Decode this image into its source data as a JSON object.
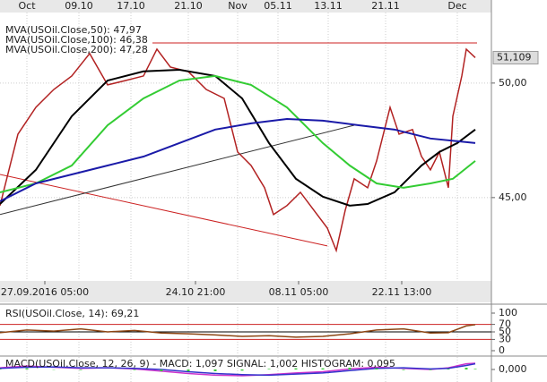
{
  "chart_data": [
    {
      "type": "line",
      "name": "price",
      "xlim": [
        0,
        109.6
      ],
      "ylim": [
        41.44,
        53.08
      ],
      "xticks": [
        {
          "value": 6,
          "label": "Oct"
        },
        {
          "value": 17.6,
          "label": "09.10"
        },
        {
          "value": 29.2,
          "label": "17.10"
        },
        {
          "value": 42,
          "label": "21.10"
        },
        {
          "value": 53,
          "label": "Nov"
        },
        {
          "value": 62,
          "label": "05.11"
        },
        {
          "value": 73.2,
          "label": "13.11"
        },
        {
          "value": 86,
          "label": "21.11"
        },
        {
          "value": 102,
          "label": "Dec"
        }
      ],
      "xticks_time": [
        {
          "value": 10,
          "label": "27.09.2016 05:00"
        },
        {
          "value": 43.6,
          "label": "24.10 21:00"
        },
        {
          "value": 66.6,
          "label": "08.11 05:00"
        },
        {
          "value": 89.6,
          "label": "22.11 13:00"
        }
      ],
      "yticks": [
        {
          "value": 50,
          "label": "50,00"
        },
        {
          "value": 45,
          "label": "45,00"
        }
      ],
      "last_price": {
        "value": 51.109,
        "label": "51,109"
      },
      "grid": true,
      "series": [
        {
          "color": "#b22222",
          "x": [
            0,
            4,
            8,
            12,
            16,
            20,
            24,
            28,
            32,
            35,
            38,
            42,
            46,
            50,
            53,
            56,
            59,
            61,
            64,
            67,
            70,
            73,
            75,
            77,
            79,
            82,
            84,
            87,
            89,
            92,
            94,
            96,
            98,
            100,
            101,
            103,
            104,
            106
          ],
          "values": [
            44.65,
            47.77,
            48.94,
            49.72,
            50.31,
            51.29,
            49.92,
            50.11,
            50.31,
            51.48,
            50.7,
            50.5,
            49.72,
            49.33,
            46.99,
            46.4,
            45.43,
            44.26,
            44.65,
            45.23,
            44.45,
            43.67,
            42.69,
            44.45,
            45.82,
            45.43,
            46.6,
            48.94,
            47.77,
            47.97,
            46.8,
            46.21,
            46.99,
            45.43,
            48.55,
            50.31,
            51.48,
            51.11
          ]
        },
        {
          "name": "MVA(USOil.Close,50): 47,97",
          "color": "#000000",
          "x": [
            0,
            8,
            16,
            24,
            32,
            40,
            48,
            54,
            60,
            66,
            72,
            78,
            82,
            88,
            94,
            98,
            102,
            106
          ],
          "values": [
            44.72,
            46.21,
            48.55,
            50.11,
            50.51,
            50.58,
            50.31,
            49.33,
            47.38,
            45.82,
            45.04,
            44.65,
            44.72,
            45.23,
            46.4,
            46.99,
            47.38,
            47.97
          ]
        },
        {
          "name": "MVA(USOil.Close,100): 46,38",
          "color": "#33cc33",
          "x": [
            0,
            8,
            16,
            24,
            32,
            40,
            48,
            56,
            64,
            72,
            78,
            84,
            90,
            96,
            101,
            106
          ],
          "values": [
            45.23,
            45.62,
            46.4,
            48.16,
            49.33,
            50.11,
            50.31,
            49.92,
            48.94,
            47.38,
            46.4,
            45.62,
            45.43,
            45.62,
            45.82,
            46.6
          ]
        },
        {
          "name": "MVA(USOil.Close,200): 47,28",
          "color": "#1a1aa8",
          "x": [
            0,
            8,
            16,
            24,
            32,
            40,
            48,
            56,
            64,
            72,
            80,
            88,
            96,
            106
          ],
          "values": [
            44.84,
            45.62,
            46.01,
            46.4,
            46.79,
            47.38,
            47.97,
            48.24,
            48.43,
            48.36,
            48.16,
            47.97,
            47.58,
            47.38
          ]
        }
      ],
      "trendlines": [
        {
          "color": "#cc2222",
          "x": [
            34,
            106.4
          ],
          "values": [
            51.75,
            51.75
          ]
        },
        {
          "color": "#cc2222",
          "x": [
            0,
            73
          ],
          "values": [
            46.01,
            42.89
          ]
        },
        {
          "color": "#333333",
          "x": [
            0,
            79
          ],
          "values": [
            44.26,
            48.16
          ]
        }
      ]
    },
    {
      "type": "line",
      "name": "rsi",
      "title": "RSI(USOil.Close, 14): 69,21",
      "xlim": [
        0,
        109.6
      ],
      "ylim": [
        -11.9,
        116.7
      ],
      "yticks": [
        100,
        70,
        50,
        30,
        0
      ],
      "levels": [
        {
          "value": 70,
          "color": "#cc2222"
        },
        {
          "value": 50,
          "color": "#000000"
        },
        {
          "value": 30,
          "color": "#cc2222"
        }
      ],
      "series": [
        {
          "color": "#8b4513",
          "x": [
            0,
            6,
            12,
            18,
            24,
            30,
            36,
            42,
            48,
            54,
            60,
            66,
            72,
            78,
            84,
            90,
            96,
            100,
            104,
            106
          ],
          "values": [
            48,
            55,
            52,
            58,
            50,
            54,
            47,
            45,
            42,
            38,
            40,
            36,
            38,
            45,
            55,
            58,
            47,
            48,
            66,
            69.21
          ]
        }
      ]
    },
    {
      "type": "line",
      "name": "macd",
      "title": "MACD(USOil.Close, 12, 26, 9) - MACD: 1,097   SIGNAL: 1,002   HISTOGRAM: 0,095",
      "xlim": [
        0,
        109.6
      ],
      "ylim": [
        -2.2,
        2.2
      ],
      "yticks": [
        {
          "value": 0,
          "label": "0,000"
        }
      ],
      "series": [
        {
          "color": "#cc33cc",
          "x": [
            0,
            6,
            12,
            18,
            24,
            30,
            36,
            42,
            48,
            54,
            60,
            66,
            72,
            78,
            84,
            90,
            96,
            100,
            104,
            106
          ],
          "values": [
            0.3,
            0.6,
            0.4,
            0.2,
            0.3,
            0.1,
            -0.3,
            -0.7,
            -1.0,
            -1.1,
            -0.9,
            -0.6,
            -0.4,
            0.1,
            0.4,
            0.2,
            0.0,
            0.3,
            1.0,
            1.097
          ]
        },
        {
          "color": "#3333cc",
          "x": [
            0,
            6,
            12,
            18,
            24,
            30,
            36,
            42,
            48,
            54,
            60,
            66,
            72,
            78,
            84,
            90,
            96,
            100,
            104,
            106
          ],
          "values": [
            0.2,
            0.4,
            0.45,
            0.3,
            0.3,
            0.2,
            0.0,
            -0.4,
            -0.7,
            -0.9,
            -1.0,
            -0.8,
            -0.6,
            -0.2,
            0.2,
            0.3,
            0.1,
            0.2,
            0.7,
            1.002
          ]
        },
        {
          "type": "bar",
          "color": "#33cc33",
          "x": [
            0,
            6,
            12,
            18,
            24,
            30,
            36,
            42,
            48,
            54,
            60,
            66,
            72,
            78,
            84,
            90,
            96,
            100,
            104,
            106
          ],
          "values": [
            0.1,
            0.2,
            -0.05,
            -0.1,
            0.0,
            -0.1,
            -0.3,
            -0.3,
            -0.3,
            -0.2,
            0.1,
            0.2,
            0.2,
            0.3,
            0.2,
            -0.1,
            -0.1,
            0.1,
            0.3,
            0.095
          ]
        }
      ]
    }
  ]
}
